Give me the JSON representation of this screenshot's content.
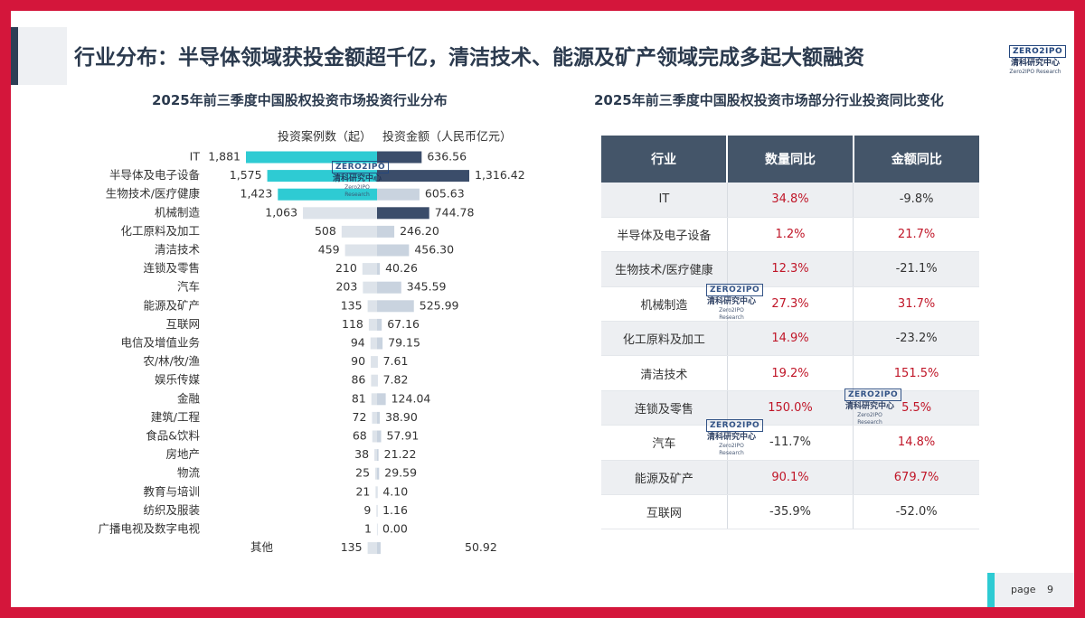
{
  "slide_title": "行业分布：半导体领域获投金额超千亿，清洁技术、能源及矿产领域完成多起大额融资",
  "logo": {
    "brand": "ZERO2IPO",
    "cn": "清科研究中心",
    "en": "Zero2IPO Research"
  },
  "left_chart_title": "2025年前三季度中国股权投资市场投资行业分布",
  "right_chart_title": "2025年前三季度中国股权投资市场部分行业投资同比变化",
  "colors": {
    "highlight": "#2ecbd3",
    "highlight_dark": "#3b4d6a",
    "light": "#c9d3df",
    "lighter": "#dde3ea",
    "positive": "#c01628"
  },
  "chart_data": {
    "type": "bar",
    "series": [
      {
        "name": "投资案例数（起）",
        "values": [
          1881,
          1575,
          1423,
          1063,
          508,
          459,
          210,
          203,
          135,
          118,
          94,
          90,
          86,
          81,
          72,
          68,
          38,
          25,
          21,
          9,
          1,
          135
        ]
      },
      {
        "name": "投资金额（人民币亿元）",
        "values": [
          636.56,
          1316.42,
          605.63,
          744.78,
          246.2,
          456.3,
          40.26,
          345.59,
          525.99,
          67.16,
          79.15,
          7.61,
          7.82,
          124.04,
          38.9,
          57.91,
          21.22,
          29.59,
          4.1,
          1.16,
          0.0,
          50.92
        ]
      }
    ],
    "categories": [
      "IT",
      "半导体及电子设备",
      "生物技术/医疗健康",
      "机械制造",
      "化工原料及加工",
      "清洁技术",
      "连锁及零售",
      "汽车",
      "能源及矿产",
      "互联网",
      "电信及增值业务",
      "农/林/牧/渔",
      "娱乐传媒",
      "金融",
      "建筑/工程",
      "食品&饮料",
      "房地产",
      "物流",
      "教育与培训",
      "纺织及服装",
      "广播电视及数字电视",
      "其他"
    ],
    "count_labels": [
      "1,881",
      "1,575",
      "1,423",
      "1,063",
      "508",
      "459",
      "210",
      "203",
      "135",
      "118",
      "94",
      "90",
      "86",
      "81",
      "72",
      "68",
      "38",
      "25",
      "21",
      "9",
      "1",
      "135"
    ],
    "amount_labels": [
      "636.56",
      "1,316.42",
      "605.63",
      "744.78",
      "246.20",
      "456.30",
      "40.26",
      "345.59",
      "525.99",
      "67.16",
      "79.15",
      "7.61",
      "7.82",
      "124.04",
      "38.90",
      "57.91",
      "21.22",
      "29.59",
      "4.10",
      "1.16",
      "0.00",
      "50.92"
    ],
    "highlight_rows": [
      0,
      1,
      2
    ],
    "dark_amount_rows": [
      0,
      1,
      3
    ],
    "legend": "top-center"
  },
  "table": {
    "headers": [
      "行业",
      "数量同比",
      "金额同比"
    ],
    "rows": [
      [
        "IT",
        "34.8%",
        "-9.8%"
      ],
      [
        "半导体及电子设备",
        "1.2%",
        "21.7%"
      ],
      [
        "生物技术/医疗健康",
        "12.3%",
        "-21.1%"
      ],
      [
        "机械制造",
        "27.3%",
        "31.7%"
      ],
      [
        "化工原料及加工",
        "14.9%",
        "-23.2%"
      ],
      [
        "清洁技术",
        "19.2%",
        "151.5%"
      ],
      [
        "连锁及零售",
        "150.0%",
        "5.5%"
      ],
      [
        "汽车",
        "-11.7%",
        "14.8%"
      ],
      [
        "能源及矿产",
        "90.1%",
        "679.7%"
      ],
      [
        "互联网",
        "-35.9%",
        "-52.0%"
      ]
    ]
  },
  "footer": {
    "page_label": "page",
    "page_number": "9"
  }
}
